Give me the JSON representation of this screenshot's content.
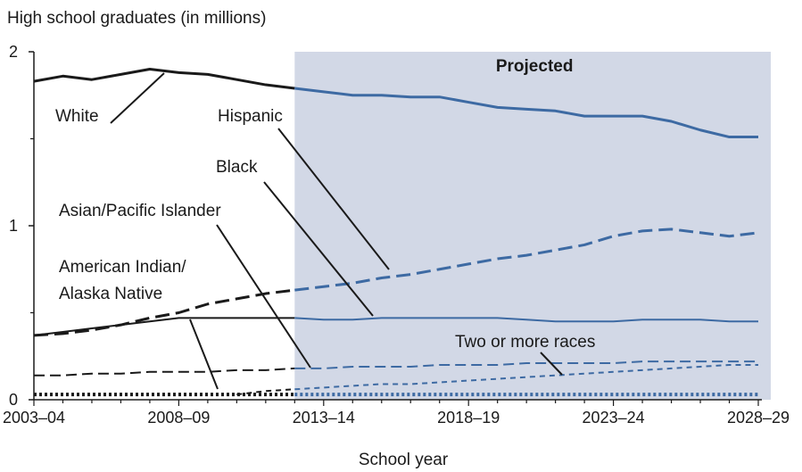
{
  "chart_data": {
    "type": "line",
    "ylabel": "High school graduates (in millions)",
    "xlabel": "School year",
    "ylim": [
      0,
      2
    ],
    "yticks": [
      0,
      1,
      2
    ],
    "xticks": [
      "2003–04",
      "2008–09",
      "2013–14",
      "2018–19",
      "2023–24",
      "2028–29"
    ],
    "x": [
      "2003–04",
      "2004–05",
      "2005–06",
      "2006–07",
      "2007–08",
      "2008–09",
      "2009–10",
      "2010–11",
      "2011–12",
      "2012–13",
      "2013–14",
      "2014–15",
      "2015–16",
      "2016–17",
      "2017–18",
      "2018–19",
      "2019–20",
      "2020–21",
      "2021–22",
      "2022–23",
      "2023–24",
      "2024–25",
      "2025–26",
      "2026–27",
      "2027–28",
      "2028–29"
    ],
    "projected_from": "2012–13",
    "projected_label": "Projected",
    "series": [
      {
        "name": "White",
        "label": "White",
        "color": "#1a1a1a",
        "projected_color": "#3d6aa3",
        "style": "solid",
        "width": 3,
        "values": [
          1.83,
          1.86,
          1.84,
          1.87,
          1.9,
          1.88,
          1.87,
          1.84,
          1.81,
          1.79,
          1.77,
          1.75,
          1.75,
          1.74,
          1.74,
          1.71,
          1.68,
          1.67,
          1.66,
          1.63,
          1.63,
          1.63,
          1.6,
          1.55,
          1.51,
          1.51
        ]
      },
      {
        "name": "Hispanic",
        "label": "Hispanic",
        "color": "#1a1a1a",
        "projected_color": "#3d6aa3",
        "style": "longdash",
        "width": 3,
        "values": [
          0.37,
          0.38,
          0.4,
          0.43,
          0.47,
          0.5,
          0.55,
          0.58,
          0.61,
          0.63,
          0.65,
          0.67,
          0.7,
          0.72,
          0.75,
          0.78,
          0.81,
          0.83,
          0.86,
          0.89,
          0.94,
          0.97,
          0.98,
          0.96,
          0.94,
          0.96
        ]
      },
      {
        "name": "Black",
        "label": "Black",
        "color": "#1a1a1a",
        "projected_color": "#3d6aa3",
        "style": "solid",
        "width": 2,
        "values": [
          0.37,
          0.39,
          0.41,
          0.43,
          0.45,
          0.47,
          0.47,
          0.47,
          0.47,
          0.47,
          0.46,
          0.46,
          0.47,
          0.47,
          0.47,
          0.47,
          0.47,
          0.46,
          0.45,
          0.45,
          0.45,
          0.46,
          0.46,
          0.46,
          0.45,
          0.45
        ]
      },
      {
        "name": "Asian/Pacific Islander",
        "label": "Asian/Pacific Islander",
        "color": "#1a1a1a",
        "projected_color": "#3d6aa3",
        "style": "dash",
        "width": 2,
        "values": [
          0.14,
          0.14,
          0.15,
          0.15,
          0.16,
          0.16,
          0.16,
          0.17,
          0.17,
          0.18,
          0.18,
          0.19,
          0.19,
          0.19,
          0.2,
          0.2,
          0.2,
          0.21,
          0.21,
          0.21,
          0.21,
          0.22,
          0.22,
          0.22,
          0.22,
          0.22
        ]
      },
      {
        "name": "American Indian/Alaska Native",
        "label": [
          "American Indian/",
          "Alaska Native"
        ],
        "color": "#1a1a1a",
        "projected_color": "#3d6aa3",
        "style": "dotted",
        "width": 4,
        "values": [
          0.03,
          0.03,
          0.03,
          0.03,
          0.03,
          0.03,
          0.03,
          0.03,
          0.03,
          0.03,
          0.03,
          0.03,
          0.03,
          0.03,
          0.03,
          0.03,
          0.03,
          0.03,
          0.03,
          0.03,
          0.03,
          0.03,
          0.03,
          0.03,
          0.03,
          0.03
        ]
      },
      {
        "name": "Two or more races",
        "label": "Two or more races",
        "color": "#1a1a1a",
        "projected_color": "#3d6aa3",
        "style": "shortdash",
        "width": 2,
        "start_index": 7,
        "values": [
          null,
          null,
          null,
          null,
          null,
          null,
          null,
          0.03,
          0.05,
          0.06,
          0.07,
          0.08,
          0.09,
          0.09,
          0.1,
          0.11,
          0.12,
          0.13,
          0.14,
          0.15,
          0.16,
          0.17,
          0.18,
          0.19,
          0.2,
          0.2
        ]
      }
    ],
    "colors": {
      "projection_band": "#d2d8e6",
      "historical": "#1a1a1a",
      "projected": "#3d6aa3"
    }
  }
}
